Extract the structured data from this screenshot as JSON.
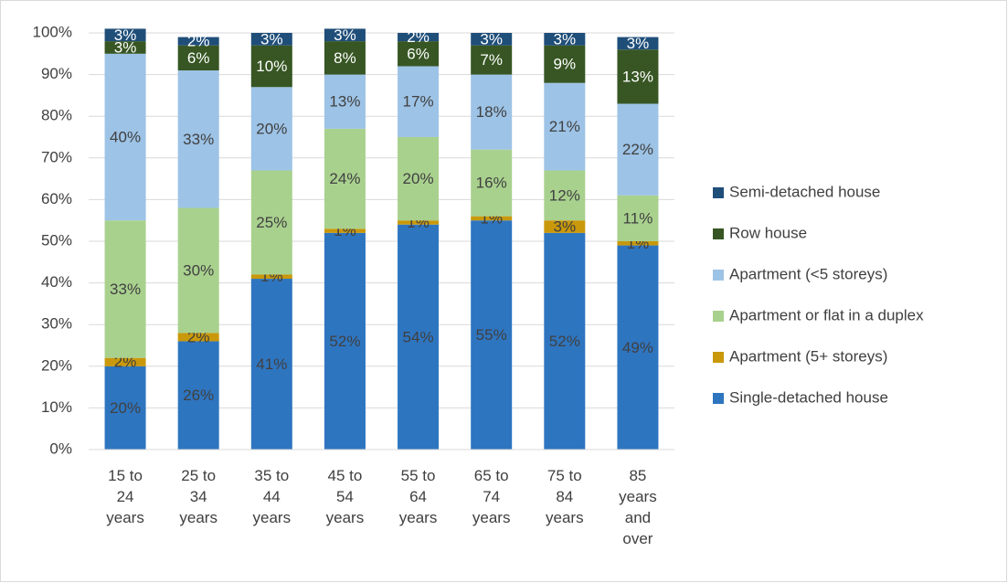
{
  "chart_data": {
    "type": "stacked_bar",
    "categories": [
      "15 to 24 years",
      "25 to 34 years",
      "35 to 44 years",
      "45 to 54 years",
      "55 to 64 years",
      "65 to 74 years",
      "75 to 84 years",
      "85 years and over"
    ],
    "series": [
      {
        "name": "Single-detached house",
        "color": "#2e75c0",
        "values": [
          20,
          26,
          41,
          52,
          54,
          55,
          52,
          49
        ],
        "value_labels": [
          "20%",
          "26%",
          "41%",
          "52%",
          "54%",
          "55%",
          "52%",
          "49%"
        ]
      },
      {
        "name": "Apartment (5+ storeys)",
        "color": "#c9980b",
        "values": [
          2,
          2,
          1,
          1,
          1,
          1,
          3,
          1
        ],
        "value_labels": [
          "2%",
          "2%",
          "1%",
          "1%",
          "1%",
          "1%",
          "3%",
          "1%"
        ]
      },
      {
        "name": "Apartment or flat in a duplex",
        "color": "#a9d18e",
        "values": [
          33,
          30,
          25,
          24,
          20,
          16,
          12,
          11
        ],
        "value_labels": [
          "33%",
          "30%",
          "25%",
          "24%",
          "20%",
          "16%",
          "12%",
          "11%"
        ]
      },
      {
        "name": "Apartment (<5 storeys)",
        "color": "#9dc3e6",
        "values": [
          40,
          33,
          20,
          13,
          17,
          18,
          21,
          22
        ],
        "value_labels": [
          "40%",
          "33%",
          "20%",
          "13%",
          "17%",
          "18%",
          "21%",
          "22%"
        ]
      },
      {
        "name": "Row house",
        "color": "#375623",
        "values": [
          3,
          6,
          10,
          8,
          6,
          7,
          9,
          13
        ],
        "value_labels": [
          "3%",
          "6%",
          "10%",
          "8%",
          "6%",
          "7%",
          "9%",
          "13%"
        ]
      },
      {
        "name": "Semi-detached house",
        "color": "#1f4e79",
        "values": [
          3,
          2,
          3,
          3,
          2,
          3,
          3,
          3
        ],
        "value_labels": [
          "3%",
          "2%",
          "3%",
          "3%",
          "2%",
          "3%",
          "3%",
          "3%"
        ]
      }
    ],
    "ylim": [
      0,
      100
    ],
    "yticks": [
      {
        "value": 0,
        "label": "0%"
      },
      {
        "value": 10,
        "label": "10%"
      },
      {
        "value": 20,
        "label": "20%"
      },
      {
        "value": 30,
        "label": "30%"
      },
      {
        "value": 40,
        "label": "40%"
      },
      {
        "value": 50,
        "label": "50%"
      },
      {
        "value": 60,
        "label": "60%"
      },
      {
        "value": 70,
        "label": "70%"
      },
      {
        "value": 80,
        "label": "80%"
      },
      {
        "value": 90,
        "label": "90%"
      },
      {
        "value": 100,
        "label": "100%"
      }
    ],
    "grid": true,
    "legend": "right"
  }
}
